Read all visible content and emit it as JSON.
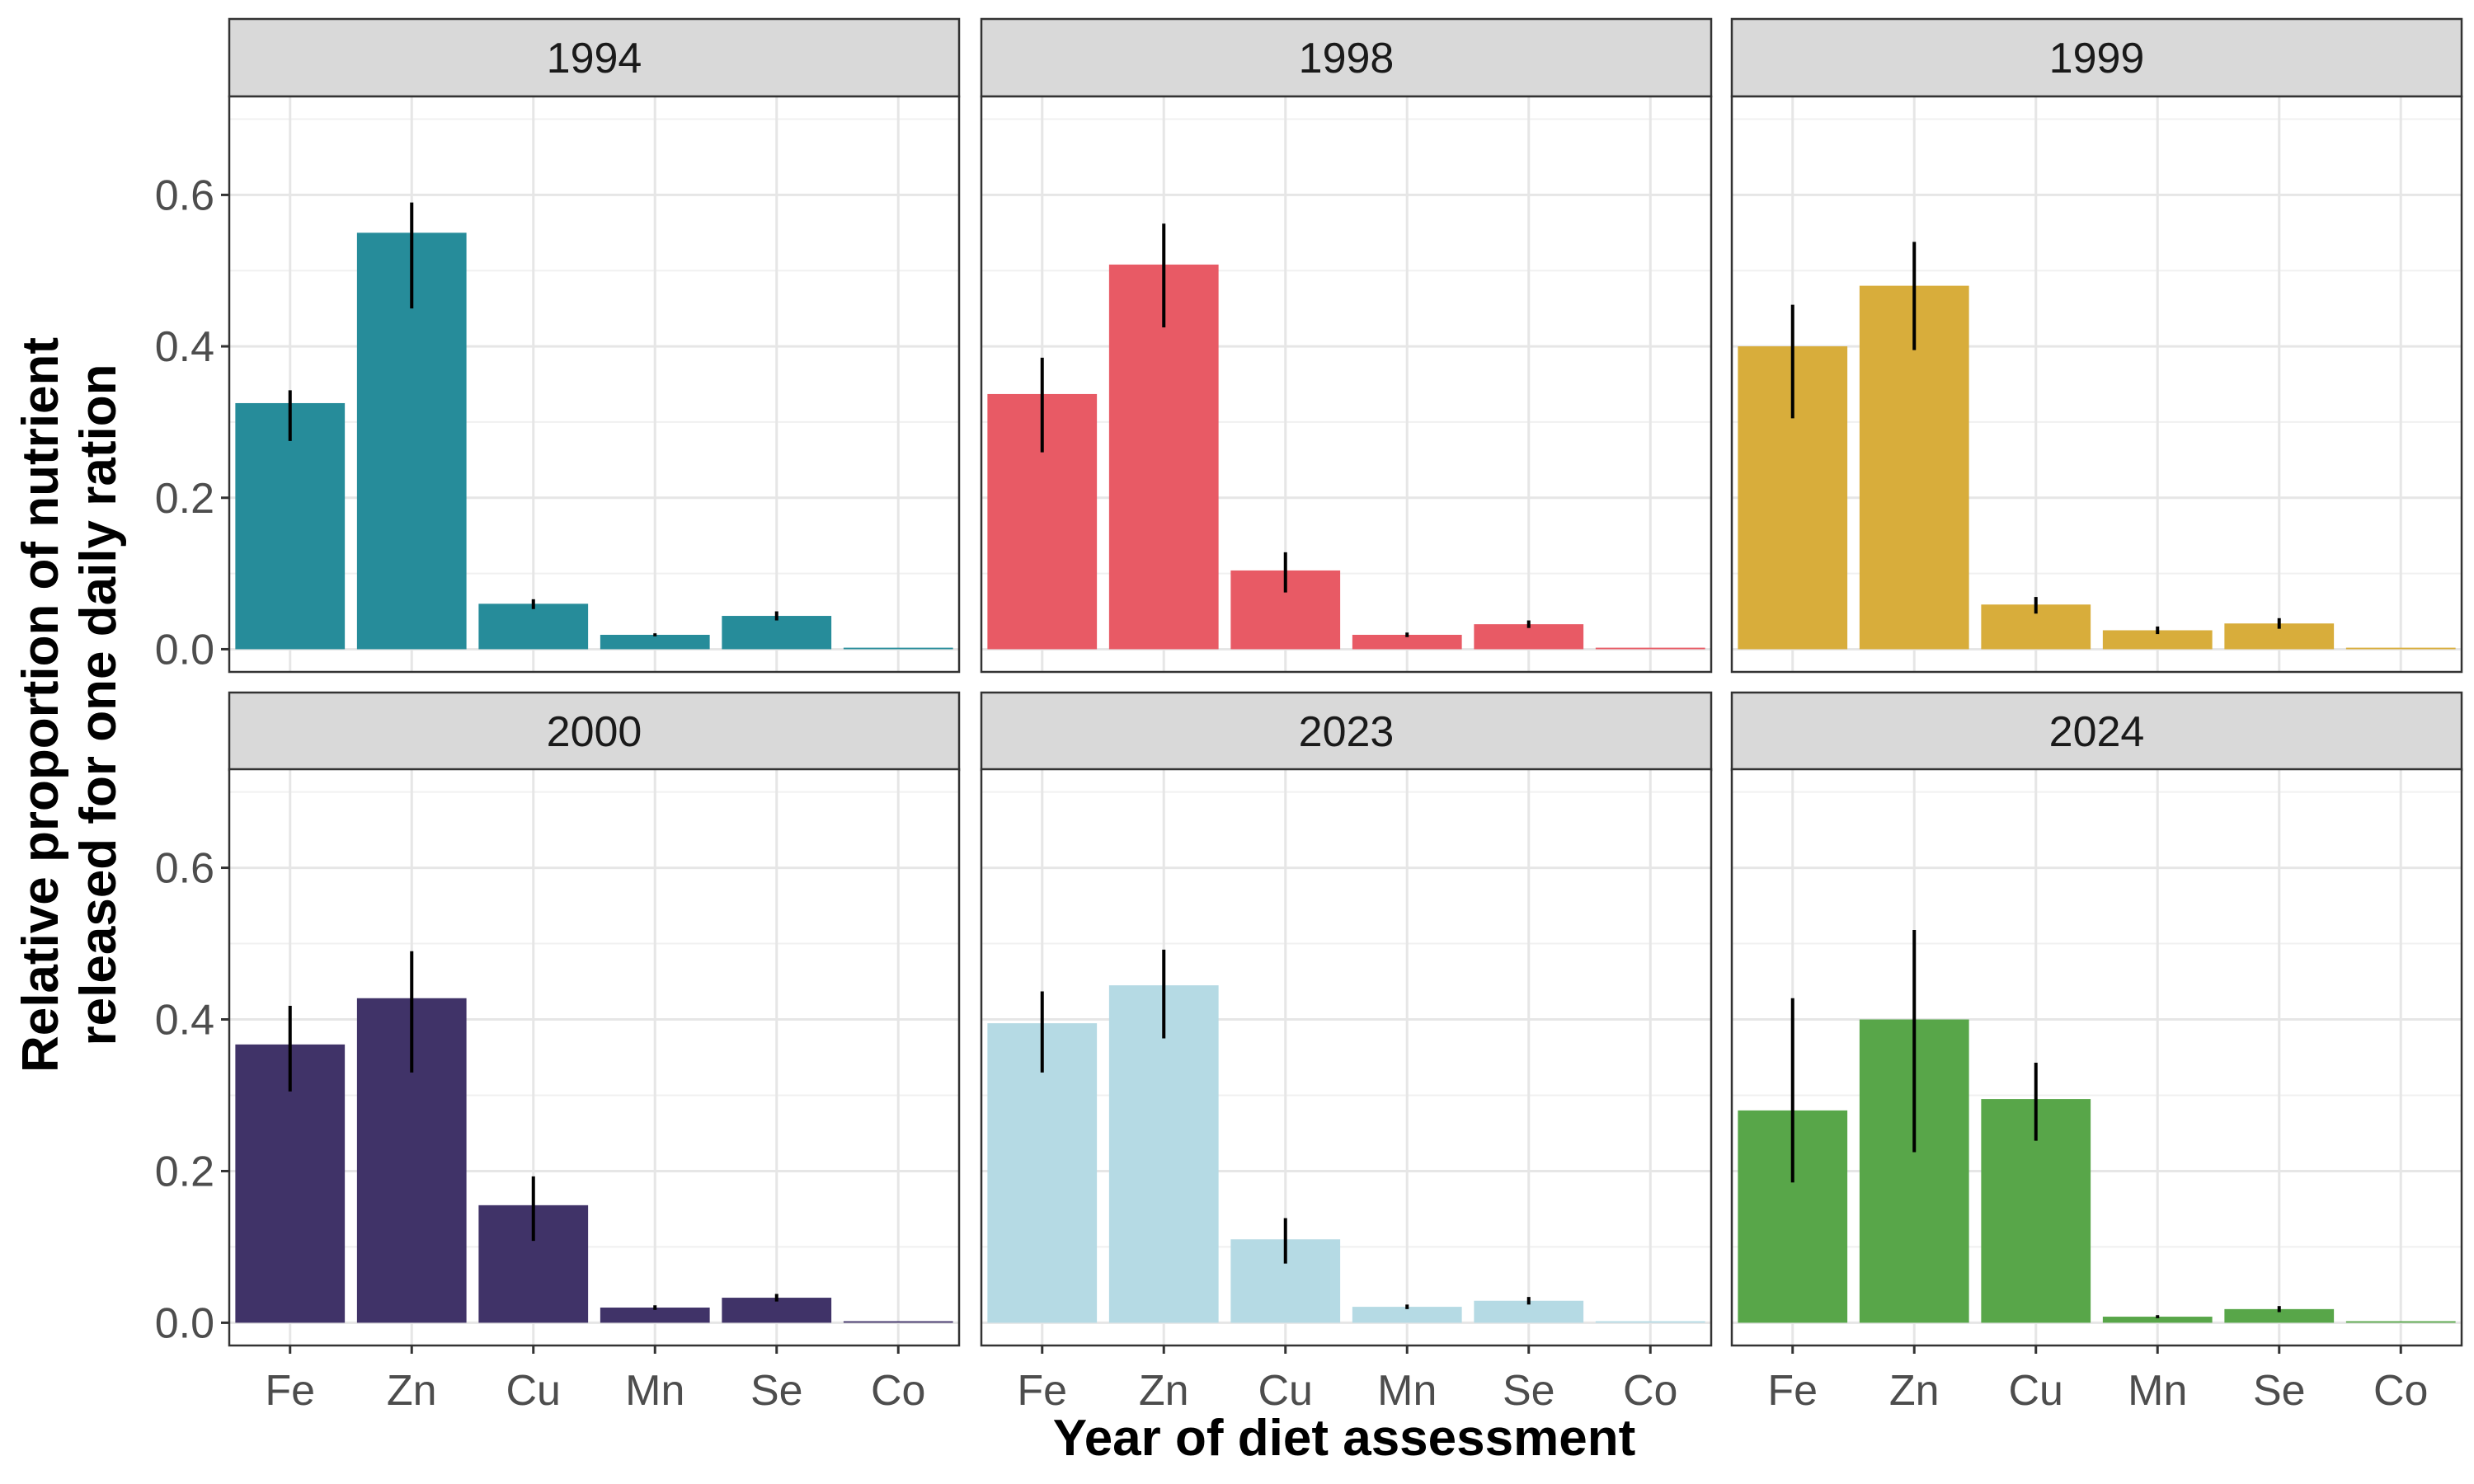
{
  "chart_data": {
    "type": "bar",
    "title": "",
    "xlabel": "Year of diet assessment",
    "ylabel": [
      "Relative proportion of nutrient",
      "released for one daily ration"
    ],
    "categories": [
      "Fe",
      "Zn",
      "Cu",
      "Mn",
      "Se",
      "Co"
    ],
    "ylim": [
      -0.03,
      0.73
    ],
    "yticks": [
      "0.0",
      "0.2",
      "0.4",
      "0.6"
    ],
    "ytick_values": [
      0,
      0.2,
      0.4,
      0.6
    ],
    "grid": true,
    "error_bars": true,
    "panels": [
      {
        "label": "1994",
        "color": "#268c9a",
        "values": [
          0.325,
          0.55,
          0.06,
          0.019,
          0.044,
          0.002
        ],
        "err_low": [
          0.275,
          0.45,
          0.053,
          0.017,
          0.038,
          0.002
        ],
        "err_high": [
          0.342,
          0.59,
          0.066,
          0.021,
          0.05,
          0.002
        ]
      },
      {
        "label": "1998",
        "color": "#e85a65",
        "values": [
          0.337,
          0.508,
          0.104,
          0.019,
          0.033,
          0.002
        ],
        "err_low": [
          0.26,
          0.425,
          0.075,
          0.016,
          0.028,
          0.002
        ],
        "err_high": [
          0.385,
          0.562,
          0.128,
          0.022,
          0.038,
          0.002
        ]
      },
      {
        "label": "1999",
        "color": "#d8ad3b",
        "values": [
          0.4,
          0.48,
          0.059,
          0.025,
          0.034,
          0.002
        ],
        "err_low": [
          0.305,
          0.395,
          0.047,
          0.02,
          0.027,
          0.002
        ],
        "err_high": [
          0.455,
          0.538,
          0.069,
          0.03,
          0.041,
          0.002
        ]
      },
      {
        "label": "2000",
        "color": "#403368",
        "values": [
          0.367,
          0.428,
          0.155,
          0.02,
          0.033,
          0.002
        ],
        "err_low": [
          0.305,
          0.33,
          0.108,
          0.017,
          0.028,
          0.002
        ],
        "err_high": [
          0.418,
          0.49,
          0.193,
          0.023,
          0.038,
          0.002
        ]
      },
      {
        "label": "2023",
        "color": "#b5dae4",
        "values": [
          0.395,
          0.445,
          0.11,
          0.021,
          0.029,
          0.002
        ],
        "err_low": [
          0.33,
          0.375,
          0.078,
          0.018,
          0.024,
          0.002
        ],
        "err_high": [
          0.437,
          0.492,
          0.138,
          0.024,
          0.034,
          0.002
        ]
      },
      {
        "label": "2024",
        "color": "#58a649",
        "values": [
          0.28,
          0.4,
          0.295,
          0.008,
          0.018,
          0.002
        ],
        "err_low": [
          0.185,
          0.225,
          0.24,
          0.006,
          0.014,
          0.002
        ],
        "err_high": [
          0.428,
          0.518,
          0.343,
          0.01,
          0.022,
          0.002
        ]
      }
    ]
  }
}
